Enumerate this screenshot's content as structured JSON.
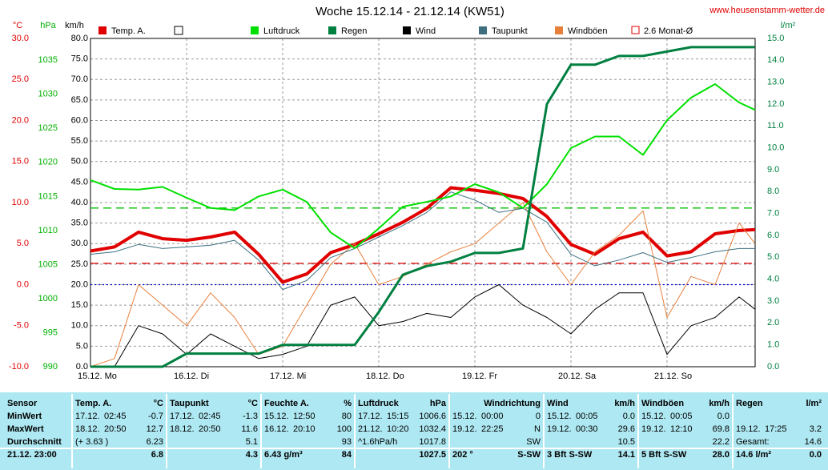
{
  "chart_data": {
    "type": "line",
    "title": "Woche 15.12.14 - 21.12.14 (KW51)",
    "source": "www.heusenstamm-wetter.de",
    "xlim": [
      0,
      166
    ],
    "xticks": [
      {
        "value": 0,
        "label": "15.12. Mo"
      },
      {
        "value": 24,
        "label": "16.12. Di"
      },
      {
        "value": 48,
        "label": "17.12. Mi"
      },
      {
        "value": 72,
        "label": "18.12. Do"
      },
      {
        "value": 96,
        "label": "19.12. Fr"
      },
      {
        "value": 120,
        "label": "20.12. Sa"
      },
      {
        "value": 144,
        "label": "21.12. So"
      }
    ],
    "x": [
      0,
      6,
      12,
      18,
      24,
      30,
      36,
      42,
      48,
      54,
      60,
      66,
      72,
      78,
      84,
      90,
      96,
      102,
      108,
      114,
      120,
      126,
      132,
      138,
      144,
      150,
      156,
      162,
      166
    ],
    "axes": [
      {
        "label": "°C",
        "color": "#e00000",
        "lim": [
          -10,
          30
        ],
        "ticks": [
          {
            "value": -10,
            "label": "-10.0"
          },
          {
            "value": -5,
            "label": "-5.0"
          },
          {
            "value": 0,
            "label": "0.0"
          },
          {
            "value": 5,
            "label": "5.0"
          },
          {
            "value": 10,
            "label": "10.0"
          },
          {
            "value": 15,
            "label": "15.0"
          },
          {
            "value": 20,
            "label": "20.0"
          },
          {
            "value": 25,
            "label": "25.0"
          },
          {
            "value": 30,
            "label": "30.0"
          }
        ]
      },
      {
        "label": "hPa",
        "color": "#00b000",
        "lim": [
          990,
          1038.2
        ],
        "ticks": [
          990,
          995,
          1000,
          1005,
          1010,
          1015,
          1020,
          1025,
          1030,
          1035
        ]
      },
      {
        "label": "km/h",
        "color": "#000000",
        "lim": [
          0,
          80
        ],
        "grid": true,
        "ticks": [
          {
            "value": 0,
            "label": "0.0"
          },
          {
            "value": 5,
            "label": "5.0"
          },
          {
            "value": 10,
            "label": "10.0"
          },
          {
            "value": 15,
            "label": "15.0"
          },
          {
            "value": 20,
            "label": "20.0"
          },
          {
            "value": 25,
            "label": "25.0"
          },
          {
            "value": 30,
            "label": "30.0"
          },
          {
            "value": 35,
            "label": "35.0"
          },
          {
            "value": 40,
            "label": "40.0"
          },
          {
            "value": 45,
            "label": "45.0"
          },
          {
            "value": 50,
            "label": "50.0"
          },
          {
            "value": 55,
            "label": "55.0"
          },
          {
            "value": 60,
            "label": "60.0"
          },
          {
            "value": 65,
            "label": "65.0"
          },
          {
            "value": 70,
            "label": "70.0"
          },
          {
            "value": 75,
            "label": "75.0"
          },
          {
            "value": 80,
            "label": "80.0"
          }
        ]
      },
      {
        "label": "l/m²",
        "color": "#008040",
        "lim": [
          0,
          15
        ],
        "ticks": [
          {
            "value": 0,
            "label": "0.0"
          },
          {
            "value": 1,
            "label": "1.0"
          },
          {
            "value": 2,
            "label": "2.0"
          },
          {
            "value": 3,
            "label": "3.0"
          },
          {
            "value": 4,
            "label": "4.0"
          },
          {
            "value": 5,
            "label": "5.0"
          },
          {
            "value": 6,
            "label": "6.0"
          },
          {
            "value": 7,
            "label": "7.0"
          },
          {
            "value": 8,
            "label": "8.0"
          },
          {
            "value": 9,
            "label": "9.0"
          },
          {
            "value": 10,
            "label": "10.0"
          },
          {
            "value": 11,
            "label": "11.0"
          },
          {
            "value": 12,
            "label": "12.0"
          },
          {
            "value": 13,
            "label": "13.0"
          },
          {
            "value": 14,
            "label": "14.0"
          },
          {
            "value": 15,
            "label": "15.0"
          }
        ]
      }
    ],
    "hlines": [
      {
        "name": "2.6 Monat-Ø",
        "axis": 0,
        "value": 2.6,
        "color": "#e00000",
        "dash": "10 6"
      },
      {
        "axis": 1,
        "value": 1013.3,
        "color": "#00c000",
        "dash": "10 6"
      },
      {
        "axis": 0,
        "value": 0,
        "color": "#0000d0",
        "dash": "2 3"
      }
    ],
    "series": [
      {
        "name": "Temp. A.",
        "color": "#e00000",
        "axis": 0,
        "width": 4,
        "values": [
          4.1,
          4.6,
          6.4,
          5.6,
          5.4,
          5.8,
          6.4,
          3.7,
          0.3,
          1.3,
          3.9,
          4.9,
          6.2,
          7.6,
          9.3,
          11.8,
          11.5,
          11.1,
          10.5,
          8.3,
          4.9,
          3.7,
          5.6,
          6.4,
          3.5,
          4.0,
          6.2,
          6.6,
          6.7
        ]
      },
      {
        "name": "Luftdruck",
        "color": "#00e000",
        "axis": 1,
        "width": 2,
        "values": [
          1017.4,
          1016.1,
          1016.0,
          1016.4,
          1014.8,
          1013.3,
          1013.0,
          1015.0,
          1016.0,
          1014.2,
          1009.7,
          1007.4,
          1010.3,
          1013.5,
          1014.2,
          1015.0,
          1016.8,
          1015.6,
          1013.3,
          1016.8,
          1022.1,
          1023.8,
          1023.8,
          1021.1,
          1026.2,
          1029.5,
          1031.5,
          1028.8,
          1027.7
        ]
      },
      {
        "name": "Regen",
        "color": "#008040",
        "axis": 3,
        "width": 3,
        "values": [
          0,
          0,
          0,
          0,
          0.6,
          0.6,
          0.6,
          0.6,
          1.0,
          1.0,
          1.0,
          1.0,
          2.5,
          4.2,
          4.6,
          4.8,
          5.2,
          5.2,
          5.4,
          12.0,
          13.8,
          13.8,
          14.2,
          14.2,
          14.4,
          14.6,
          14.6,
          14.6,
          14.6
        ]
      },
      {
        "name": "Wind",
        "color": "#000000",
        "axis": 2,
        "width": 1,
        "values": [
          0,
          0,
          10,
          8,
          3,
          8,
          5,
          2,
          3,
          5,
          15,
          17,
          10,
          11,
          13,
          12,
          17,
          20,
          15,
          12,
          8,
          14,
          18,
          18,
          3,
          10,
          12,
          17,
          14
        ]
      },
      {
        "name": "Taupunkt",
        "color": "#3c7080",
        "axis": 0,
        "width": 1,
        "values": [
          3.7,
          4.0,
          4.9,
          4.4,
          4.6,
          4.8,
          5.4,
          3.0,
          -0.6,
          0.5,
          3.3,
          4.4,
          5.8,
          7.2,
          8.8,
          11.3,
          10.3,
          8.8,
          9.3,
          7.6,
          3.7,
          2.3,
          3.0,
          3.9,
          2.7,
          3.3,
          4.0,
          4.4,
          4.4
        ]
      },
      {
        "name": "Windböen",
        "color": "#e8803c",
        "axis": 2,
        "width": 1,
        "values": [
          0,
          2,
          20,
          15,
          10,
          18,
          12,
          3,
          5,
          15,
          25,
          30,
          20,
          22,
          25,
          28,
          30,
          35,
          40,
          28,
          20,
          28,
          32,
          38,
          12,
          22,
          20,
          35,
          30
        ]
      }
    ]
  },
  "table": {
    "columns": [
      {
        "header": [
          "Sensor"
        ],
        "rows": [
          [
            "MinWert"
          ],
          [
            "MaxWert"
          ],
          [
            "Durchschnitt"
          ],
          [
            "21.12. 23:00"
          ]
        ]
      },
      {
        "header": [
          "Temp. A.",
          "°C"
        ],
        "rows": [
          [
            "17.12.",
            "02:45",
            "-0.7"
          ],
          [
            "18.12.",
            "20:50",
            "12.7"
          ],
          [
            "(+ 3.63 )",
            "6.23"
          ],
          [
            "6.8"
          ]
        ]
      },
      {
        "header": [
          "Taupunkt",
          "°C"
        ],
        "rows": [
          [
            "17.12.",
            "02:45",
            "-1.3"
          ],
          [
            "18.12.",
            "20:50",
            "11.6"
          ],
          [
            "5.1"
          ],
          [
            "4.3"
          ]
        ]
      },
      {
        "header": [
          "Feuchte A.",
          "%"
        ],
        "rows": [
          [
            "15.12.",
            "12:50",
            "80"
          ],
          [
            "16.12.",
            "20:10",
            "100"
          ],
          [
            "93"
          ],
          [
            "6.43 g/m³",
            "84"
          ]
        ]
      },
      {
        "header": [
          "Luftdruck",
          "hPa"
        ],
        "rows": [
          [
            "17.12.",
            "15:15",
            "1006.6"
          ],
          [
            "21.12.",
            "10:20",
            "1032.4"
          ],
          [
            "^1.6hPa/h",
            "1017.8"
          ],
          [
            "1027.5"
          ]
        ]
      },
      {
        "header": [
          "Windrichtung"
        ],
        "rows": [
          [
            "15.12.",
            "00:00",
            "0"
          ],
          [
            "19.12.",
            "22:25",
            "N"
          ],
          [
            "SW"
          ],
          [
            "202 °",
            "S-SW"
          ]
        ]
      },
      {
        "header": [
          "Wind",
          "km/h"
        ],
        "rows": [
          [
            "15.12.",
            "00:05",
            "0.0"
          ],
          [
            "19.12.",
            "00:30",
            "29.6"
          ],
          [
            "10.5"
          ],
          [
            "3 Bft S-SW",
            "14.1"
          ]
        ]
      },
      {
        "header": [
          "Windböen",
          "km/h"
        ],
        "rows": [
          [
            "15.12.",
            "00:05",
            "0.0"
          ],
          [
            "19.12.",
            "12:10",
            "69.8"
          ],
          [
            "22.2"
          ],
          [
            "5 Bft S-SW",
            "28.0"
          ]
        ]
      },
      {
        "header": [
          "Regen",
          "l/m²"
        ],
        "rows": [
          [],
          [
            "19.12.",
            "17:25",
            "3.2"
          ],
          [
            "Gesamt:",
            "14.6"
          ],
          [
            "14.6 l/m²",
            "0.0"
          ]
        ]
      }
    ]
  }
}
